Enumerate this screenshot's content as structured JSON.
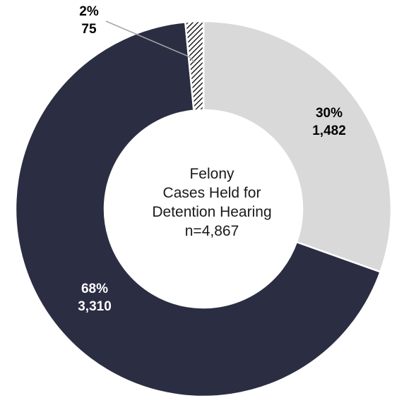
{
  "chart_data": {
    "type": "pie",
    "donut": true,
    "center_label": [
      "Felony",
      "Cases Held for",
      "Detention Hearing",
      "n=4,867"
    ],
    "slices": [
      {
        "percent_label": "30%",
        "count_label": "1,482",
        "value": 1482,
        "color": "#d9d9d9",
        "label_color": "#000000"
      },
      {
        "percent_label": "68%",
        "count_label": "3,310",
        "value": 3310,
        "color": "#2b2d42",
        "label_color": "#ffffff"
      },
      {
        "percent_label": "2%",
        "count_label": "75",
        "value": 75,
        "color": "#ffffff",
        "pattern": "diagonal-hatch",
        "pattern_color": "#000000",
        "label_color": "#000000"
      }
    ],
    "legend": "none"
  }
}
